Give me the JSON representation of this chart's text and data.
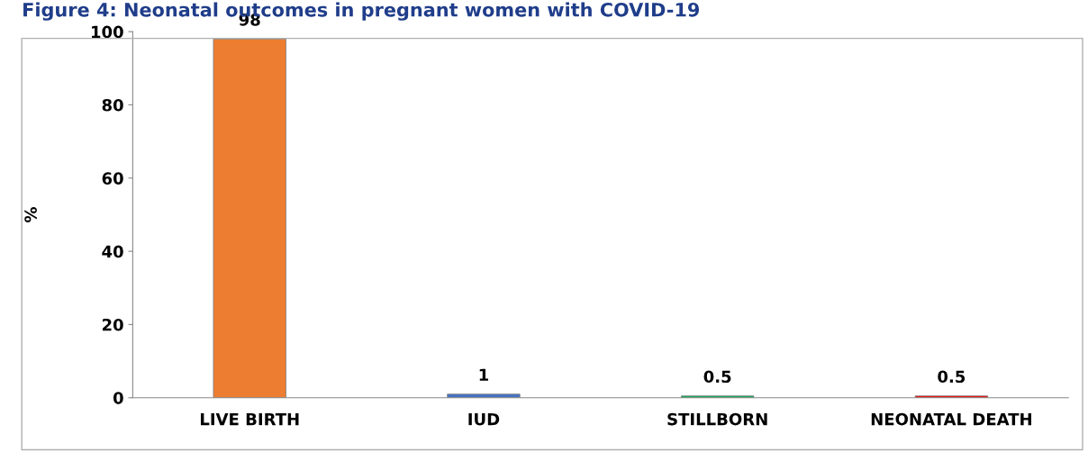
{
  "chart_data": {
    "type": "bar",
    "title": "Figure 4: Neonatal outcomes in pregnant women with COVID-19",
    "ylabel": "%",
    "categories": [
      "LIVE BIRTH",
      "IUD",
      "STILLBORN",
      "NEONATAL DEATH"
    ],
    "values": [
      98,
      1,
      0.5,
      0.5
    ],
    "colors": [
      "#ed7d31",
      "#4472c4",
      "#00b050",
      "#ff0000"
    ],
    "ylim": [
      0,
      100
    ],
    "yticks": [
      0,
      20,
      40,
      60,
      80,
      100
    ],
    "grid": false,
    "data_labels": true
  }
}
